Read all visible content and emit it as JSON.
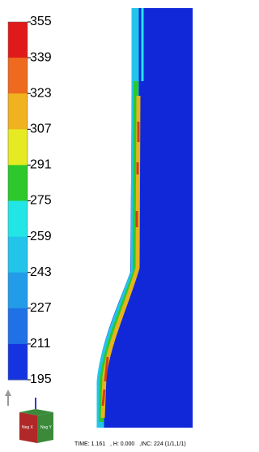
{
  "legend": {
    "ticks": [
      355,
      339,
      323,
      307,
      291,
      275,
      259,
      243,
      227,
      211,
      195
    ],
    "colors": [
      "#e01a1a",
      "#ee6a1e",
      "#f0b21e",
      "#e6ea22",
      "#2cc82c",
      "#22e6e6",
      "#22c4ea",
      "#229ce8",
      "#2070e6",
      "#1434e2"
    ]
  },
  "triad": {
    "x_label": "Neg X",
    "y_label": "Neg Y"
  },
  "status": "TIME: 1.161   , H: 0.000   ,INC: 224 (1/1,1/1)"
}
